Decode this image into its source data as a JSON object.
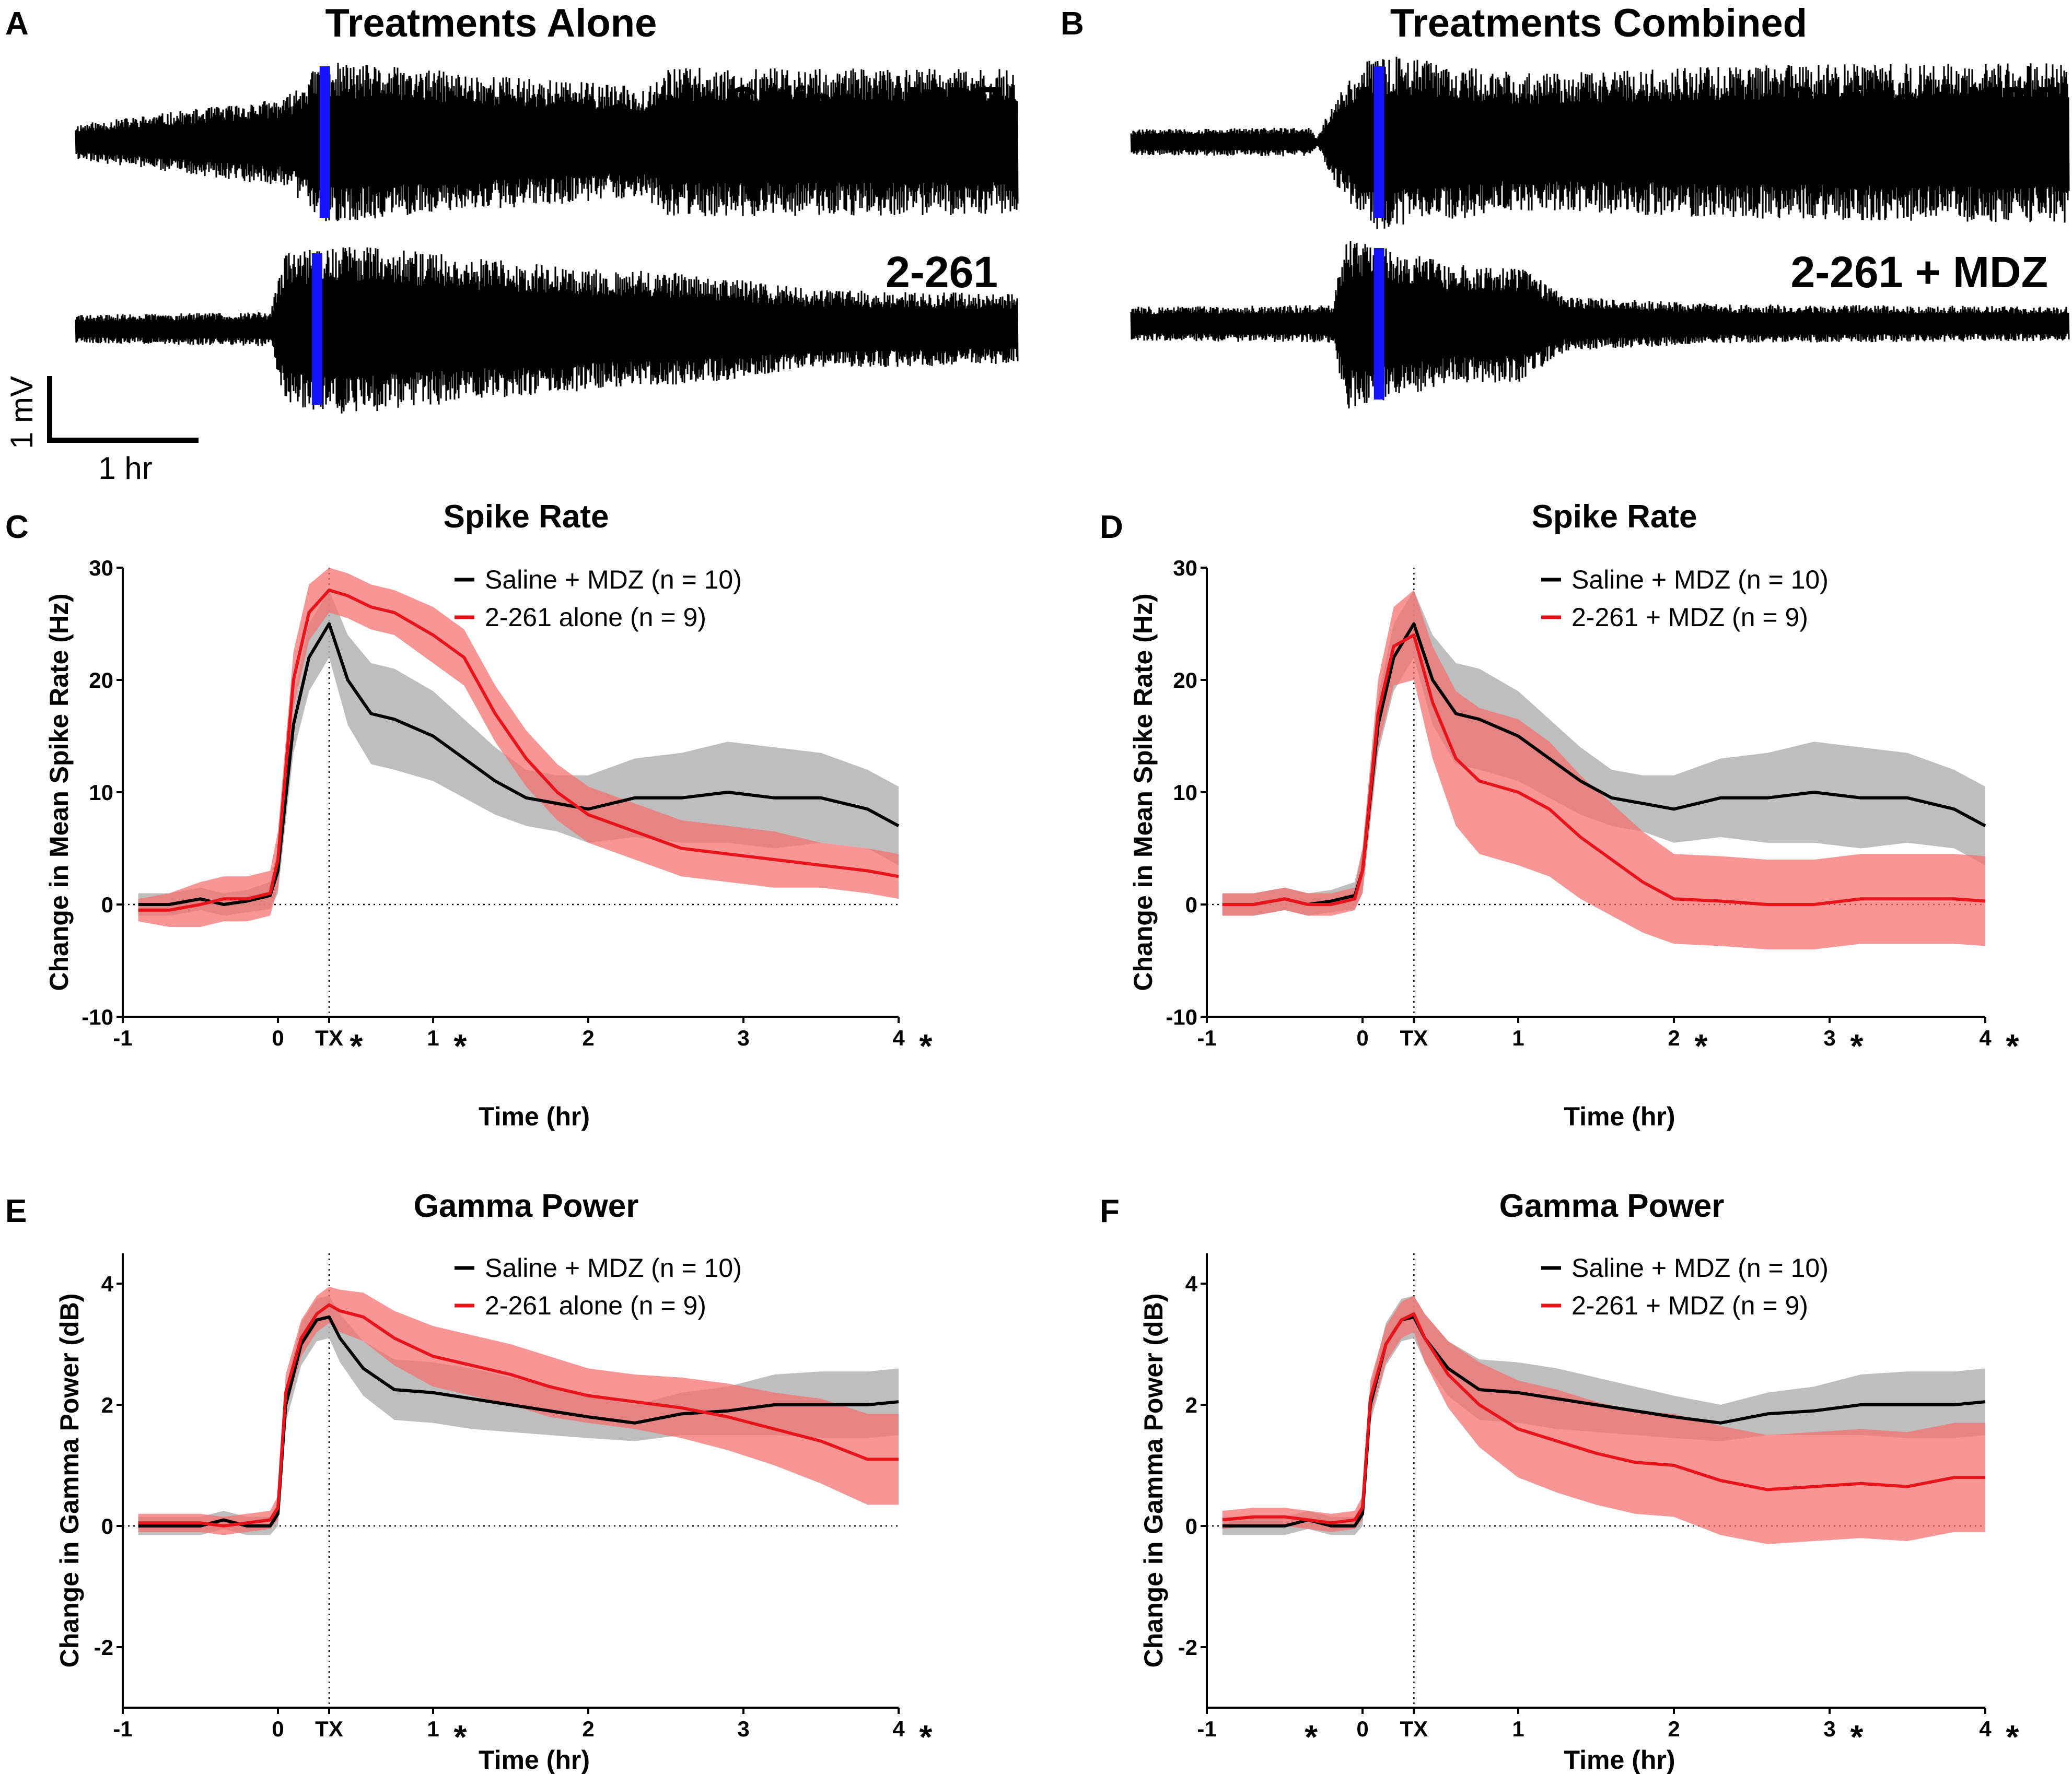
{
  "panels": {
    "A": {
      "letter": "A",
      "heading": "Treatments Alone",
      "traces": [
        {
          "label": "Saline + MDZ",
          "seed": 11,
          "segments": [
            [
              -1.3,
              0.22
            ],
            [
              0.05,
              0.55
            ],
            [
              0.28,
              1.0
            ],
            [
              2.35,
              0.68
            ],
            [
              2.5,
              0.92
            ],
            [
              4.75,
              0.9
            ]
          ],
          "marker_hr": 0.3
        },
        {
          "label": "2-261",
          "seed": 29,
          "segments": [
            [
              -1.3,
              0.18
            ],
            [
              -0.05,
              0.22
            ],
            [
              0.05,
              1.0
            ],
            [
              0.5,
              1.1
            ],
            [
              1.3,
              0.9
            ],
            [
              1.9,
              0.8
            ],
            [
              2.7,
              0.7
            ],
            [
              3.45,
              0.5
            ],
            [
              3.55,
              0.5
            ],
            [
              4.75,
              0.45
            ]
          ],
          "marker_hr": 0.25
        }
      ]
    },
    "B": {
      "letter": "B",
      "heading": "Treatments Combined",
      "traces": [
        {
          "label": "Saline + MDZ",
          "seed": 47,
          "segments": [
            [
              -1.3,
              0.16
            ],
            [
              -0.15,
              0.18
            ],
            [
              -0.1,
              0.05
            ],
            [
              0.0,
              0.5
            ],
            [
              0.25,
              1.1
            ],
            [
              1.2,
              0.85
            ],
            [
              2.8,
              0.95
            ],
            [
              4.75,
              1.0
            ]
          ],
          "marker_hr": 0.3
        },
        {
          "label": "2-261 + MDZ",
          "seed": 83,
          "segments": [
            [
              -1.3,
              0.22
            ],
            [
              0.0,
              0.24
            ],
            [
              0.08,
              1.1
            ],
            [
              0.8,
              0.75
            ],
            [
              1.2,
              0.75
            ],
            [
              1.5,
              0.35
            ],
            [
              2.5,
              0.25
            ],
            [
              4.75,
              0.22
            ]
          ],
          "marker_hr": 0.3
        }
      ]
    }
  },
  "scale_bar": {
    "vertical_label": "1 mV",
    "horizontal_label": "1 hr"
  },
  "colors": {
    "control": "#000000",
    "treatment": "#e8141c",
    "control_band": "#b3b3b3",
    "treatment_band": "#f56e6e",
    "marker": "#1414ff"
  },
  "chart_data": [
    {
      "panel": "C",
      "type": "line",
      "title": "Spike Rate",
      "xlabel": "Time (hr)",
      "ylabel": "Change in Mean Spike Rate (Hz)",
      "xlim": [
        -1,
        4
      ],
      "ylim": [
        -10,
        30
      ],
      "x_ticks": [
        {
          "v": -1,
          "label": "-1"
        },
        {
          "v": 0,
          "label": "0"
        },
        {
          "v": 0.33,
          "label": "TX"
        },
        {
          "v": 1,
          "label": "1"
        },
        {
          "v": 2,
          "label": "2"
        },
        {
          "v": 3,
          "label": "3"
        },
        {
          "v": 4,
          "label": "4"
        }
      ],
      "y_ticks": [
        {
          "v": -10,
          "label": "-10"
        },
        {
          "v": 0,
          "label": "0"
        },
        {
          "v": 10,
          "label": "10"
        },
        {
          "v": 20,
          "label": "20"
        },
        {
          "v": 30,
          "label": "30"
        }
      ],
      "significance_x": [
        0.33,
        1,
        4
      ],
      "baseline": 0,
      "tx_time": 0.33,
      "series": [
        {
          "name": "Saline + MDZ (n = 10)",
          "role": "control",
          "x": [
            -0.9,
            -0.7,
            -0.5,
            -0.35,
            -0.2,
            -0.05,
            0.0,
            0.1,
            0.2,
            0.33,
            0.45,
            0.6,
            0.75,
            1.0,
            1.2,
            1.4,
            1.6,
            1.8,
            2.0,
            2.3,
            2.6,
            2.9,
            3.2,
            3.5,
            3.8,
            4.0
          ],
          "mean": [
            0,
            0,
            0.5,
            0,
            0.3,
            0.8,
            3,
            16,
            22,
            25,
            20,
            17,
            16.5,
            15,
            13,
            11,
            9.5,
            9,
            8.5,
            9.5,
            9.5,
            10,
            9.5,
            9.5,
            8.5,
            7
          ],
          "sd": [
            1,
            1,
            1,
            1,
            1,
            1.2,
            2,
            2.5,
            3,
            3,
            4,
            4.5,
            4.5,
            4,
            3.5,
            3,
            2.5,
            2.5,
            3,
            3.5,
            4,
            4.5,
            4.5,
            4,
            3.5,
            3.5
          ]
        },
        {
          "name": "2-261 alone (n = 9)",
          "role": "treatment",
          "x": [
            -0.9,
            -0.7,
            -0.5,
            -0.35,
            -0.2,
            -0.05,
            0.0,
            0.1,
            0.2,
            0.33,
            0.45,
            0.6,
            0.75,
            1.0,
            1.2,
            1.4,
            1.6,
            1.8,
            2.0,
            2.3,
            2.6,
            2.9,
            3.2,
            3.5,
            3.8,
            4.0
          ],
          "mean": [
            -0.5,
            -0.5,
            0,
            0.5,
            0.5,
            1,
            4,
            20,
            26,
            28,
            27.5,
            26.5,
            26,
            24,
            22,
            17,
            13,
            10,
            8,
            6.5,
            5,
            4.5,
            4,
            3.5,
            3,
            2.5
          ],
          "sd": [
            1,
            1.5,
            2,
            2,
            2,
            2,
            2.5,
            2.5,
            2.5,
            2,
            2,
            2,
            2,
            2.5,
            2.5,
            2.5,
            2.5,
            2.5,
            2.5,
            2.5,
            2.5,
            2.5,
            2.5,
            2,
            2,
            2
          ]
        }
      ]
    },
    {
      "panel": "D",
      "type": "line",
      "title": "Spike Rate",
      "xlabel": "Time (hr)",
      "ylabel": "Change in Mean Spike Rate (Hz)",
      "xlim": [
        -1,
        4
      ],
      "ylim": [
        -10,
        30
      ],
      "x_ticks": [
        {
          "v": -1,
          "label": "-1"
        },
        {
          "v": 0,
          "label": "0"
        },
        {
          "v": 0.33,
          "label": "TX"
        },
        {
          "v": 1,
          "label": "1"
        },
        {
          "v": 2,
          "label": "2"
        },
        {
          "v": 3,
          "label": "3"
        },
        {
          "v": 4,
          "label": "4"
        }
      ],
      "y_ticks": [
        {
          "v": -10,
          "label": "-10"
        },
        {
          "v": 0,
          "label": "0"
        },
        {
          "v": 10,
          "label": "10"
        },
        {
          "v": 20,
          "label": "20"
        },
        {
          "v": 30,
          "label": "30"
        }
      ],
      "significance_x": [
        2,
        3,
        4
      ],
      "baseline": 0,
      "tx_time": 0.33,
      "series": [
        {
          "name": "Saline + MDZ (n = 10)",
          "role": "control",
          "x": [
            -0.9,
            -0.7,
            -0.5,
            -0.35,
            -0.2,
            -0.05,
            0.0,
            0.1,
            0.2,
            0.33,
            0.45,
            0.6,
            0.75,
            1.0,
            1.2,
            1.4,
            1.6,
            1.8,
            2.0,
            2.3,
            2.6,
            2.9,
            3.2,
            3.5,
            3.8,
            4.0
          ],
          "mean": [
            0,
            0,
            0.5,
            0,
            0.3,
            0.8,
            3,
            16,
            22,
            25,
            20,
            17,
            16.5,
            15,
            13,
            11,
            9.5,
            9,
            8.5,
            9.5,
            9.5,
            10,
            9.5,
            9.5,
            8.5,
            7
          ],
          "sd": [
            1,
            1,
            1,
            1,
            1,
            1.2,
            2,
            2.5,
            3,
            3,
            4,
            4.5,
            4.5,
            4,
            3.5,
            3,
            2.5,
            2.5,
            3,
            3.5,
            4,
            4.5,
            4.5,
            4,
            3.5,
            3.5
          ]
        },
        {
          "name": "2-261 + MDZ (n = 9)",
          "role": "treatment",
          "x": [
            -0.9,
            -0.7,
            -0.5,
            -0.35,
            -0.2,
            -0.05,
            0.0,
            0.1,
            0.2,
            0.33,
            0.45,
            0.6,
            0.75,
            1.0,
            1.2,
            1.4,
            1.6,
            1.8,
            2.0,
            2.3,
            2.6,
            2.9,
            3.2,
            3.5,
            3.8,
            4.0
          ],
          "mean": [
            0,
            0,
            0.5,
            0,
            0,
            0.5,
            3,
            17,
            23,
            24,
            18,
            13,
            11,
            10,
            8.5,
            6,
            4,
            2,
            0.5,
            0.3,
            0,
            0,
            0.5,
            0.5,
            0.5,
            0.3
          ],
          "sd": [
            1,
            1,
            1,
            1,
            1,
            1,
            2,
            3,
            3.5,
            4,
            5,
            6,
            6.5,
            6.5,
            6,
            5.5,
            5,
            4.5,
            4,
            4,
            4,
            4,
            4,
            4,
            4,
            4
          ]
        }
      ]
    },
    {
      "panel": "E",
      "type": "line",
      "title": "Gamma Power",
      "xlabel": "Time (hr)",
      "ylabel": "Change in Gamma Power (dB)",
      "xlim": [
        -1,
        4
      ],
      "ylim": [
        -3,
        4.5
      ],
      "x_ticks": [
        {
          "v": -1,
          "label": "-1"
        },
        {
          "v": 0,
          "label": "0"
        },
        {
          "v": 0.33,
          "label": "TX"
        },
        {
          "v": 1,
          "label": "1"
        },
        {
          "v": 2,
          "label": "2"
        },
        {
          "v": 3,
          "label": "3"
        },
        {
          "v": 4,
          "label": "4"
        }
      ],
      "y_ticks": [
        {
          "v": -2,
          "label": "-2"
        },
        {
          "v": 0,
          "label": "0"
        },
        {
          "v": 2,
          "label": "2"
        },
        {
          "v": 4,
          "label": "4"
        }
      ],
      "significance_x": [
        1,
        4
      ],
      "baseline": 0,
      "tx_time": 0.33,
      "series": [
        {
          "name": "Saline + MDZ (n = 10)",
          "role": "control",
          "x": [
            -0.9,
            -0.7,
            -0.5,
            -0.35,
            -0.2,
            -0.05,
            0.0,
            0.05,
            0.15,
            0.25,
            0.33,
            0.4,
            0.55,
            0.75,
            1.0,
            1.25,
            1.5,
            1.75,
            2.0,
            2.3,
            2.6,
            2.9,
            3.2,
            3.5,
            3.8,
            4.0
          ],
          "mean": [
            0,
            0,
            0,
            0.1,
            0,
            0,
            0.2,
            2,
            3,
            3.4,
            3.45,
            3.1,
            2.6,
            2.25,
            2.2,
            2.1,
            2.0,
            1.9,
            1.8,
            1.7,
            1.85,
            1.9,
            2.0,
            2.0,
            2.0,
            2.05
          ],
          "sd": [
            0.15,
            0.15,
            0.15,
            0.15,
            0.15,
            0.15,
            0.2,
            0.3,
            0.35,
            0.35,
            0.35,
            0.4,
            0.45,
            0.5,
            0.5,
            0.5,
            0.45,
            0.4,
            0.35,
            0.3,
            0.35,
            0.4,
            0.5,
            0.55,
            0.55,
            0.55
          ]
        },
        {
          "name": "2-261 alone (n = 9)",
          "role": "treatment",
          "x": [
            -0.9,
            -0.7,
            -0.5,
            -0.35,
            -0.2,
            -0.05,
            0.0,
            0.05,
            0.15,
            0.25,
            0.33,
            0.4,
            0.55,
            0.75,
            1.0,
            1.25,
            1.5,
            1.75,
            2.0,
            2.3,
            2.6,
            2.9,
            3.2,
            3.5,
            3.8,
            4.0
          ],
          "mean": [
            0.05,
            0.05,
            0.05,
            0,
            0.05,
            0.1,
            0.3,
            2.2,
            3.1,
            3.5,
            3.65,
            3.55,
            3.45,
            3.1,
            2.8,
            2.65,
            2.5,
            2.3,
            2.15,
            2.05,
            1.95,
            1.8,
            1.6,
            1.4,
            1.1,
            1.1
          ],
          "sd": [
            0.15,
            0.15,
            0.15,
            0.15,
            0.15,
            0.15,
            0.2,
            0.3,
            0.3,
            0.3,
            0.3,
            0.35,
            0.4,
            0.45,
            0.5,
            0.5,
            0.5,
            0.5,
            0.45,
            0.45,
            0.5,
            0.55,
            0.6,
            0.7,
            0.75,
            0.75
          ]
        }
      ]
    },
    {
      "panel": "F",
      "type": "line",
      "title": "Gamma Power",
      "xlabel": "Time (hr)",
      "ylabel": "Change in Gamma Power (dB)",
      "xlim": [
        -1,
        4
      ],
      "ylim": [
        -3,
        4.5
      ],
      "x_ticks": [
        {
          "v": -1,
          "label": "-1"
        },
        {
          "v": 0,
          "label": "0"
        },
        {
          "v": 0.33,
          "label": "TX"
        },
        {
          "v": 1,
          "label": "1"
        },
        {
          "v": 2,
          "label": "2"
        },
        {
          "v": 3,
          "label": "3"
        },
        {
          "v": 4,
          "label": "4"
        }
      ],
      "y_ticks": [
        {
          "v": -2,
          "label": "-2"
        },
        {
          "v": 0,
          "label": "0"
        },
        {
          "v": 2,
          "label": "2"
        },
        {
          "v": 4,
          "label": "4"
        }
      ],
      "significance_x": [
        -0.33,
        3,
        4
      ],
      "baseline": 0,
      "tx_time": 0.33,
      "series": [
        {
          "name": "Saline + MDZ (n = 10)",
          "role": "control",
          "x": [
            -0.9,
            -0.7,
            -0.5,
            -0.35,
            -0.2,
            -0.05,
            0.0,
            0.05,
            0.15,
            0.25,
            0.33,
            0.4,
            0.55,
            0.75,
            1.0,
            1.25,
            1.5,
            1.75,
            2.0,
            2.3,
            2.6,
            2.9,
            3.2,
            3.5,
            3.8,
            4.0
          ],
          "mean": [
            0,
            0,
            0,
            0.1,
            0,
            0,
            0.2,
            2,
            3,
            3.4,
            3.45,
            3.1,
            2.6,
            2.25,
            2.2,
            2.1,
            2.0,
            1.9,
            1.8,
            1.7,
            1.85,
            1.9,
            2.0,
            2.0,
            2.0,
            2.05
          ],
          "sd": [
            0.15,
            0.15,
            0.15,
            0.15,
            0.15,
            0.15,
            0.2,
            0.3,
            0.35,
            0.35,
            0.35,
            0.4,
            0.45,
            0.5,
            0.5,
            0.5,
            0.45,
            0.4,
            0.35,
            0.3,
            0.35,
            0.4,
            0.5,
            0.55,
            0.55,
            0.55
          ]
        },
        {
          "name": "2-261 + MDZ (n = 9)",
          "role": "treatment",
          "x": [
            -0.9,
            -0.7,
            -0.5,
            -0.35,
            -0.2,
            -0.05,
            0.0,
            0.05,
            0.15,
            0.25,
            0.33,
            0.4,
            0.55,
            0.75,
            1.0,
            1.25,
            1.5,
            1.75,
            2.0,
            2.3,
            2.6,
            2.9,
            3.2,
            3.5,
            3.8,
            4.0
          ],
          "mean": [
            0.1,
            0.15,
            0.15,
            0.1,
            0.05,
            0.1,
            0.3,
            2.1,
            3.0,
            3.4,
            3.5,
            3.1,
            2.5,
            2.0,
            1.6,
            1.4,
            1.2,
            1.05,
            1.0,
            0.75,
            0.6,
            0.65,
            0.7,
            0.65,
            0.8,
            0.8
          ],
          "sd": [
            0.15,
            0.15,
            0.15,
            0.15,
            0.15,
            0.15,
            0.2,
            0.3,
            0.3,
            0.3,
            0.3,
            0.4,
            0.55,
            0.7,
            0.8,
            0.85,
            0.85,
            0.85,
            0.85,
            0.9,
            0.9,
            0.9,
            0.9,
            0.9,
            0.9,
            0.9
          ]
        }
      ]
    }
  ]
}
